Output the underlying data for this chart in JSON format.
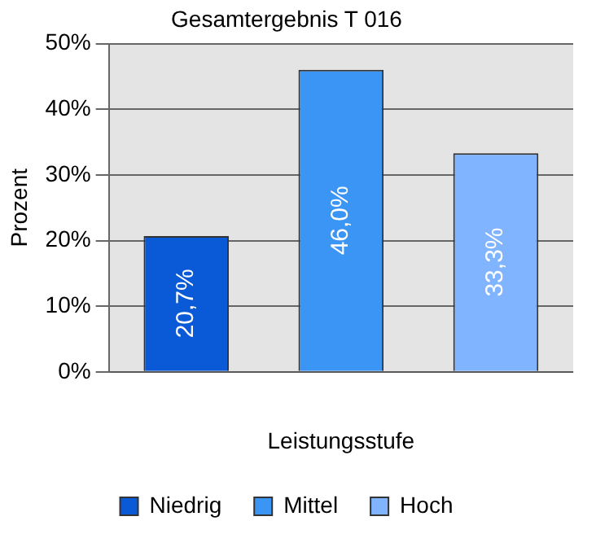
{
  "chart_data": {
    "type": "bar",
    "title": "Gesamtergebnis T 016",
    "xlabel": "Leistungsstufe",
    "ylabel": "Prozent",
    "categories": [
      null,
      null,
      null
    ],
    "series": [
      {
        "name": "Niedrig",
        "color": "#0a5ad8",
        "values": [
          20.7,
          null,
          null
        ],
        "value_labels": [
          "20,7%",
          null,
          null
        ]
      },
      {
        "name": "Mittel",
        "color": "#3a95f5",
        "values": [
          null,
          46.0,
          null
        ],
        "value_labels": [
          null,
          "46,0%",
          null
        ]
      },
      {
        "name": "Hoch",
        "color": "#80b4ff",
        "values": [
          null,
          null,
          33.3
        ],
        "value_labels": [
          null,
          null,
          "33,3%"
        ]
      }
    ],
    "ylim": [
      0,
      50
    ],
    "yticks": [
      {
        "value": 0,
        "label": "0%"
      },
      {
        "value": 10,
        "label": "10%"
      },
      {
        "value": 20,
        "label": "20%"
      },
      {
        "value": 30,
        "label": "30%"
      },
      {
        "value": 40,
        "label": "40%"
      },
      {
        "value": 50,
        "label": "50%"
      }
    ],
    "grid": "y",
    "legend": "bottom"
  }
}
